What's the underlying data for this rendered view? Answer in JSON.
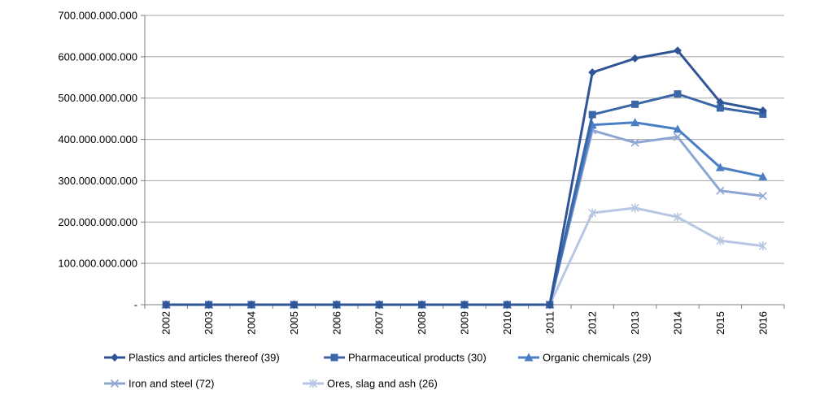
{
  "chart_data": {
    "type": "line",
    "title": "",
    "xlabel": "",
    "ylabel": "",
    "categories": [
      "2002",
      "2003",
      "2004",
      "2005",
      "2006",
      "2007",
      "2008",
      "2009",
      "2010",
      "2011",
      "2012",
      "2013",
      "2014",
      "2015",
      "2016"
    ],
    "ylim": [
      0,
      700000000000
    ],
    "y_tick_values": [
      0,
      100000000000,
      200000000000,
      300000000000,
      400000000000,
      500000000000,
      600000000000,
      700000000000
    ],
    "y_tick_labels": [
      "-",
      "100.000.000.000",
      "200.000.000.000",
      "300.000.000.000",
      "400.000.000.000",
      "500.000.000.000",
      "600.000.000.000",
      "700.000.000.000"
    ],
    "grid": "horizontal",
    "legend_position": "bottom",
    "series": [
      {
        "name": "Plastics and articles thereof (39)",
        "color": "#2f5597",
        "marker": "diamond",
        "values": [
          0,
          0,
          0,
          0,
          0,
          0,
          0,
          0,
          0,
          0,
          562000000000,
          596000000000,
          615000000000,
          490000000000,
          470000000000
        ]
      },
      {
        "name": "Pharmaceutical products (30)",
        "color": "#3b66a8",
        "marker": "square",
        "values": [
          0,
          0,
          0,
          0,
          0,
          0,
          0,
          0,
          0,
          0,
          460000000000,
          485000000000,
          510000000000,
          476000000000,
          461000000000
        ]
      },
      {
        "name": "Organic chemicals (29)",
        "color": "#4a7fc4",
        "marker": "triangle",
        "values": [
          0,
          0,
          0,
          0,
          0,
          0,
          0,
          0,
          0,
          0,
          435000000000,
          441000000000,
          425000000000,
          332000000000,
          310000000000
        ]
      },
      {
        "name": "Iron and steel (72)",
        "color": "#8ea6d2",
        "marker": "x",
        "values": [
          0,
          0,
          0,
          0,
          0,
          0,
          0,
          0,
          0,
          0,
          422000000000,
          392000000000,
          406000000000,
          276000000000,
          263000000000
        ]
      },
      {
        "name": "Ores, slag and ash (26)",
        "color": "#b6c6e3",
        "marker": "star",
        "values": [
          0,
          0,
          0,
          0,
          0,
          0,
          0,
          0,
          0,
          0,
          222000000000,
          234000000000,
          212000000000,
          155000000000,
          142000000000
        ]
      }
    ]
  }
}
